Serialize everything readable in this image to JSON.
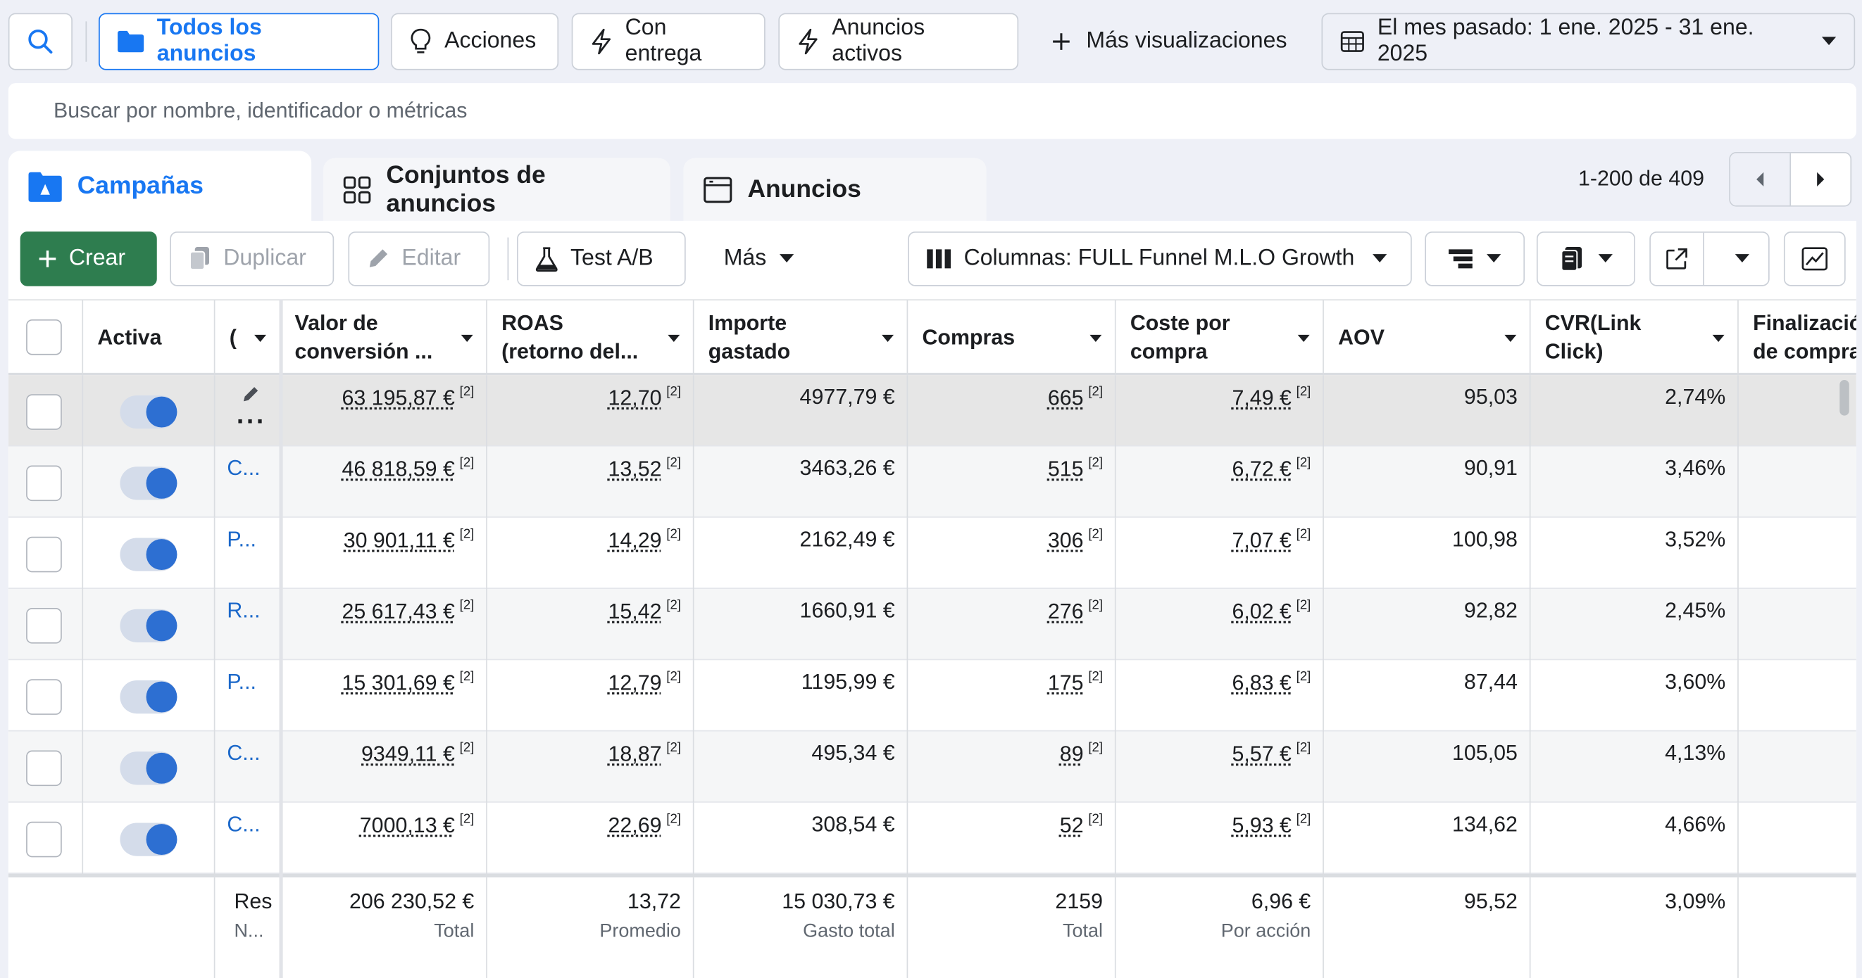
{
  "toolbar_top": {
    "filters": [
      "Todos los anuncios",
      "Acciones",
      "Con entrega",
      "Anuncios activos"
    ],
    "more_views": "Más visualizaciones",
    "date_range": "El mes pasado: 1 ene. 2025 - 31 ene. 2025"
  },
  "search": {
    "placeholder": "Buscar por nombre, identificador o métricas"
  },
  "tabs": [
    "Campañas",
    "Conjuntos de anuncios",
    "Anuncios"
  ],
  "pagination": "1-200 de 409",
  "actions": {
    "create": "Crear",
    "duplicate": "Duplicar",
    "edit": "Editar",
    "ab_test": "Test A/B",
    "more": "Más",
    "columns": "Columnas: FULL Funnel M.L.O Growth"
  },
  "table": {
    "headers": [
      "Activa",
      "Valor de conversión ...",
      "ROAS (retorno del...",
      "Importe gastado",
      "Compras",
      "Coste por compra",
      "AOV",
      "CVR(Link Click)",
      "Finalización de compra"
    ],
    "header_lines": {
      "conv": [
        "Valor de",
        "conversión ..."
      ],
      "roas": [
        "ROAS",
        "(retorno del..."
      ],
      "spent": [
        "Importe",
        "gastado"
      ],
      "cpp": [
        "Coste por",
        "compra"
      ],
      "cvr": [
        "CVR(Link",
        "Click)"
      ],
      "fin": [
        "Finalizació",
        "de compra"
      ]
    },
    "footnote": "[2]",
    "rows": [
      {
        "name": "",
        "conv": "63 195,87 €",
        "roas": "12,70",
        "spent": "4977,79 €",
        "purchases": "665",
        "cpp": "7,49 €",
        "aov": "95,03",
        "cvr": "2,74%"
      },
      {
        "name": "C...",
        "conv": "46 818,59 €",
        "roas": "13,52",
        "spent": "3463,26 €",
        "purchases": "515",
        "cpp": "6,72 €",
        "aov": "90,91",
        "cvr": "3,46%"
      },
      {
        "name": "P...",
        "conv": "30 901,11 €",
        "roas": "14,29",
        "spent": "2162,49 €",
        "purchases": "306",
        "cpp": "7,07 €",
        "aov": "100,98",
        "cvr": "3,52%"
      },
      {
        "name": "R...",
        "conv": "25 617,43 €",
        "roas": "15,42",
        "spent": "1660,91 €",
        "purchases": "276",
        "cpp": "6,02 €",
        "aov": "92,82",
        "cvr": "2,45%"
      },
      {
        "name": "P...",
        "conv": "15 301,69 €",
        "roas": "12,79",
        "spent": "1195,99 €",
        "purchases": "175",
        "cpp": "6,83 €",
        "aov": "87,44",
        "cvr": "3,60%"
      },
      {
        "name": "C...",
        "conv": "9349,11 €",
        "roas": "18,87",
        "spent": "495,34 €",
        "purchases": "89",
        "cpp": "5,57 €",
        "aov": "105,05",
        "cvr": "4,13%"
      },
      {
        "name": "C...",
        "conv": "7000,13 €",
        "roas": "22,69",
        "spent": "308,54 €",
        "purchases": "52",
        "cpp": "5,93 €",
        "aov": "134,62",
        "cvr": "4,66%"
      }
    ],
    "footer": {
      "name_line1": "Res",
      "name_line2": "N...",
      "conv": "206 230,52 €",
      "conv_sub": "Total",
      "roas": "13,72",
      "roas_sub": "Promedio",
      "spent": "15 030,73 €",
      "spent_sub": "Gasto total",
      "purchases": "2159",
      "purchases_sub": "Total",
      "cpp": "6,96 €",
      "cpp_sub": "Por acción",
      "aov": "95,52",
      "cvr": "3,09%"
    }
  },
  "colors": {
    "accent": "#1877f2",
    "create_button": "#2e7d4f",
    "toggle_on": "#2d6fd2"
  }
}
